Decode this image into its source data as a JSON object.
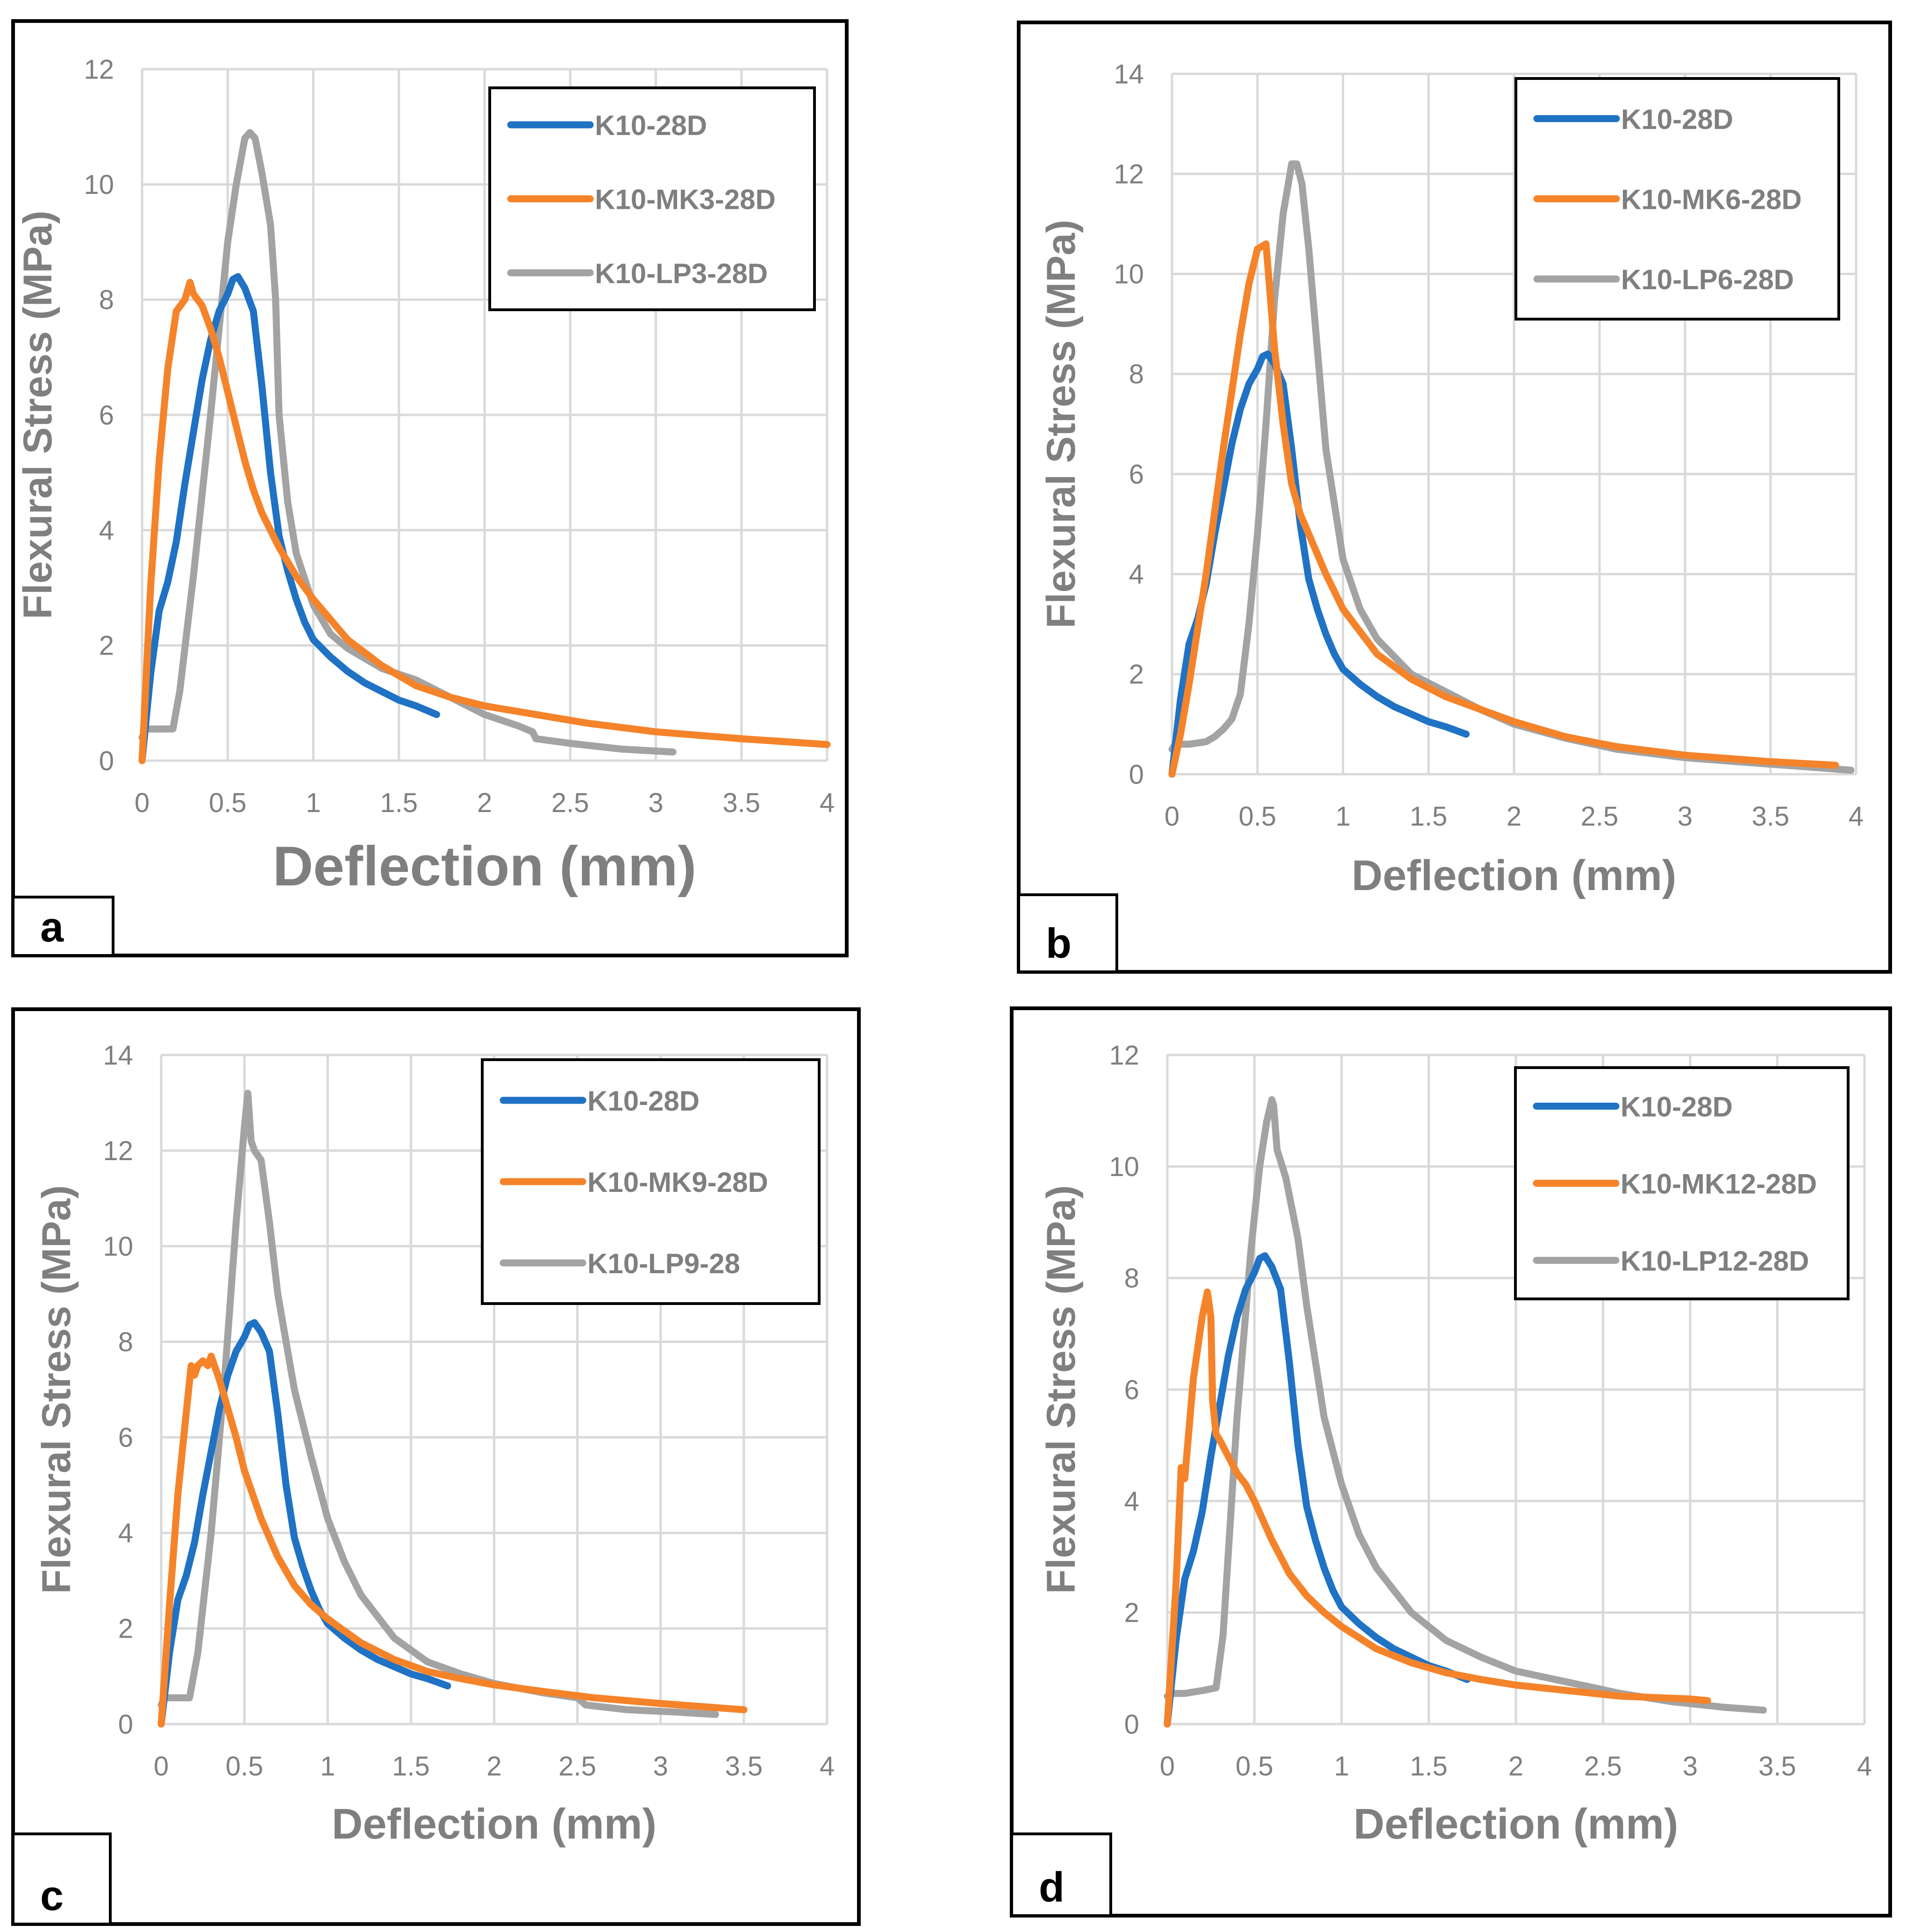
{
  "colors": {
    "blue": "#1f72c4",
    "orange": "#f5832a",
    "gray": "#a3a3a3",
    "grid": "#d9d9d9",
    "axis_text": "#7f7f7f",
    "frame": "#000000"
  },
  "chart_data": [
    {
      "panel": "a",
      "type": "line",
      "title": "",
      "xlabel": "Deflection (mm)",
      "ylabel": "Flexural Stress (MPa)",
      "xlim": [
        0,
        4
      ],
      "ylim": [
        0,
        12
      ],
      "xticks": [
        0,
        0.5,
        1,
        1.5,
        2,
        2.5,
        3,
        3.5,
        4
      ],
      "yticks": [
        0,
        2,
        4,
        6,
        8,
        10,
        12
      ],
      "xtick_labels": [
        "0",
        "0.5",
        "1",
        "1.5",
        "2",
        "2.5",
        "3",
        "3.5",
        "4"
      ],
      "ytick_labels": [
        "0",
        "2",
        "4",
        "6",
        "8",
        "10",
        "12"
      ],
      "grid": true,
      "legend": "top-right",
      "series": [
        {
          "name": "K10-28D",
          "color": "blue",
          "x": [
            0,
            0.05,
            0.1,
            0.15,
            0.2,
            0.25,
            0.3,
            0.35,
            0.4,
            0.45,
            0.5,
            0.53,
            0.56,
            0.6,
            0.65,
            0.7,
            0.75,
            0.8,
            0.85,
            0.9,
            0.95,
            1.0,
            1.1,
            1.2,
            1.3,
            1.4,
            1.5,
            1.6,
            1.72
          ],
          "y": [
            0,
            1.5,
            2.6,
            3.1,
            3.8,
            4.8,
            5.7,
            6.6,
            7.3,
            7.8,
            8.1,
            8.35,
            8.4,
            8.2,
            7.8,
            6.5,
            5.0,
            3.9,
            3.3,
            2.8,
            2.4,
            2.1,
            1.8,
            1.55,
            1.35,
            1.2,
            1.05,
            0.95,
            0.8
          ]
        },
        {
          "name": "K10-MK3-28D",
          "color": "orange",
          "x": [
            0,
            0.05,
            0.1,
            0.15,
            0.2,
            0.25,
            0.28,
            0.3,
            0.35,
            0.4,
            0.45,
            0.5,
            0.55,
            0.6,
            0.65,
            0.7,
            0.8,
            0.9,
            1.0,
            1.2,
            1.4,
            1.6,
            1.8,
            2.0,
            2.3,
            2.6,
            3.0,
            3.5,
            4.0
          ],
          "y": [
            0,
            3.0,
            5.2,
            6.8,
            7.8,
            8.0,
            8.3,
            8.1,
            7.9,
            7.5,
            7.0,
            6.4,
            5.8,
            5.2,
            4.7,
            4.3,
            3.7,
            3.2,
            2.8,
            2.1,
            1.65,
            1.3,
            1.1,
            0.95,
            0.8,
            0.65,
            0.5,
            0.38,
            0.28
          ]
        },
        {
          "name": "K10-LP3-28D",
          "color": "gray",
          "x": [
            0,
            0.02,
            0.1,
            0.18,
            0.22,
            0.3,
            0.4,
            0.5,
            0.55,
            0.6,
            0.63,
            0.66,
            0.7,
            0.75,
            0.78,
            0.8,
            0.85,
            0.9,
            1.0,
            1.1,
            1.2,
            1.4,
            1.6,
            1.8,
            2.0,
            2.2,
            2.28,
            2.3,
            2.5,
            2.8,
            3.1
          ],
          "y": [
            0.4,
            0.55,
            0.55,
            0.55,
            1.2,
            3.2,
            6.0,
            9.0,
            10.0,
            10.8,
            10.9,
            10.8,
            10.2,
            9.3,
            8.0,
            6.0,
            4.5,
            3.6,
            2.7,
            2.2,
            1.95,
            1.6,
            1.4,
            1.1,
            0.8,
            0.6,
            0.5,
            0.38,
            0.3,
            0.2,
            0.15
          ]
        }
      ]
    },
    {
      "panel": "b",
      "type": "line",
      "title": "",
      "xlabel": "Deflection (mm)",
      "ylabel": "Flexural Stress (MPa)",
      "xlim": [
        0,
        4
      ],
      "ylim": [
        0,
        14
      ],
      "xticks": [
        0,
        0.5,
        1,
        1.5,
        2,
        2.5,
        3,
        3.5,
        4
      ],
      "yticks": [
        0,
        2,
        4,
        6,
        8,
        10,
        12,
        14
      ],
      "xtick_labels": [
        "0",
        "0.5",
        "1",
        "1.5",
        "2",
        "2.5",
        "3",
        "3.5",
        "4"
      ],
      "ytick_labels": [
        "0",
        "2",
        "4",
        "6",
        "8",
        "10",
        "12",
        "14"
      ],
      "grid": true,
      "legend": "top-right",
      "series": [
        {
          "name": "K10-28D",
          "color": "blue",
          "x": [
            0,
            0.05,
            0.1,
            0.15,
            0.2,
            0.25,
            0.3,
            0.35,
            0.4,
            0.45,
            0.5,
            0.53,
            0.56,
            0.6,
            0.65,
            0.7,
            0.75,
            0.8,
            0.85,
            0.9,
            0.95,
            1.0,
            1.1,
            1.2,
            1.3,
            1.4,
            1.5,
            1.6,
            1.72
          ],
          "y": [
            0,
            1.5,
            2.6,
            3.1,
            3.8,
            4.8,
            5.7,
            6.6,
            7.3,
            7.8,
            8.1,
            8.35,
            8.4,
            8.2,
            7.8,
            6.5,
            5.0,
            3.9,
            3.3,
            2.8,
            2.4,
            2.1,
            1.8,
            1.55,
            1.35,
            1.2,
            1.05,
            0.95,
            0.8
          ]
        },
        {
          "name": "K10-MK6-28D",
          "color": "orange",
          "x": [
            0,
            0.05,
            0.1,
            0.2,
            0.3,
            0.4,
            0.45,
            0.5,
            0.55,
            0.6,
            0.65,
            0.7,
            0.75,
            0.8,
            0.9,
            1.0,
            1.2,
            1.4,
            1.6,
            1.8,
            2.0,
            2.3,
            2.6,
            3.0,
            3.5,
            3.88
          ],
          "y": [
            0,
            0.8,
            1.8,
            4.0,
            6.5,
            8.8,
            9.8,
            10.5,
            10.6,
            8.5,
            7.0,
            5.8,
            5.2,
            4.8,
            4.0,
            3.3,
            2.4,
            1.9,
            1.55,
            1.3,
            1.05,
            0.75,
            0.55,
            0.38,
            0.25,
            0.18
          ]
        },
        {
          "name": "K10-LP6-28D",
          "color": "gray",
          "x": [
            0,
            0.02,
            0.1,
            0.2,
            0.25,
            0.3,
            0.35,
            0.4,
            0.45,
            0.5,
            0.55,
            0.6,
            0.65,
            0.7,
            0.73,
            0.76,
            0.8,
            0.85,
            0.9,
            1.0,
            1.1,
            1.2,
            1.4,
            1.6,
            1.8,
            2.0,
            2.3,
            2.6,
            3.0,
            3.5,
            3.97
          ],
          "y": [
            0.5,
            0.6,
            0.6,
            0.65,
            0.75,
            0.9,
            1.1,
            1.6,
            3.0,
            4.8,
            7.0,
            9.5,
            11.2,
            12.2,
            12.2,
            11.8,
            10.5,
            8.5,
            6.5,
            4.3,
            3.3,
            2.7,
            2.0,
            1.65,
            1.3,
            1.0,
            0.72,
            0.5,
            0.33,
            0.2,
            0.08
          ]
        }
      ]
    },
    {
      "panel": "c",
      "type": "line",
      "title": "",
      "xlabel": "Deflection (mm)",
      "ylabel": "Flexural Stress (MPa)",
      "xlim": [
        0,
        4
      ],
      "ylim": [
        0,
        14
      ],
      "xticks": [
        0,
        0.5,
        1,
        1.5,
        2,
        2.5,
        3,
        3.5,
        4
      ],
      "yticks": [
        0,
        2,
        4,
        6,
        8,
        10,
        12,
        14
      ],
      "xtick_labels": [
        "0",
        "0.5",
        "1",
        "1.5",
        "2",
        "2.5",
        "3",
        "3.5",
        "4"
      ],
      "ytick_labels": [
        "0",
        "2",
        "4",
        "6",
        "8",
        "10",
        "12",
        "14"
      ],
      "grid": true,
      "legend": "top-right",
      "series": [
        {
          "name": "K10-28D",
          "color": "blue",
          "x": [
            0,
            0.05,
            0.1,
            0.15,
            0.2,
            0.25,
            0.3,
            0.35,
            0.4,
            0.45,
            0.5,
            0.53,
            0.56,
            0.6,
            0.65,
            0.7,
            0.75,
            0.8,
            0.85,
            0.9,
            0.95,
            1.0,
            1.1,
            1.2,
            1.3,
            1.4,
            1.5,
            1.6,
            1.72
          ],
          "y": [
            0,
            1.5,
            2.6,
            3.1,
            3.8,
            4.8,
            5.7,
            6.6,
            7.3,
            7.8,
            8.1,
            8.35,
            8.4,
            8.2,
            7.8,
            6.5,
            5.0,
            3.9,
            3.3,
            2.8,
            2.4,
            2.1,
            1.8,
            1.55,
            1.35,
            1.2,
            1.05,
            0.95,
            0.8
          ]
        },
        {
          "name": "K10-MK9-28D",
          "color": "orange",
          "x": [
            0,
            0.05,
            0.1,
            0.15,
            0.18,
            0.2,
            0.22,
            0.25,
            0.28,
            0.3,
            0.35,
            0.4,
            0.45,
            0.5,
            0.55,
            0.6,
            0.7,
            0.8,
            0.9,
            1.0,
            1.2,
            1.4,
            1.6,
            1.8,
            2.0,
            2.3,
            2.6,
            3.0,
            3.5
          ],
          "y": [
            0,
            2.5,
            4.8,
            6.5,
            7.5,
            7.3,
            7.5,
            7.6,
            7.5,
            7.7,
            7.2,
            6.6,
            6.0,
            5.3,
            4.8,
            4.3,
            3.5,
            2.9,
            2.5,
            2.2,
            1.7,
            1.35,
            1.1,
            0.95,
            0.82,
            0.68,
            0.55,
            0.43,
            0.3
          ]
        },
        {
          "name": "K10-LP9-28",
          "color": "gray",
          "x": [
            0,
            0.02,
            0.1,
            0.17,
            0.22,
            0.3,
            0.38,
            0.45,
            0.5,
            0.52,
            0.54,
            0.56,
            0.6,
            0.65,
            0.7,
            0.8,
            0.9,
            1.0,
            1.1,
            1.2,
            1.4,
            1.6,
            1.8,
            2.0,
            2.3,
            2.5,
            2.55,
            2.8,
            3.1,
            3.33
          ],
          "y": [
            0.4,
            0.55,
            0.55,
            0.55,
            1.5,
            4.0,
            7.2,
            10.5,
            12.5,
            13.2,
            12.2,
            12.0,
            11.8,
            10.5,
            9.0,
            7.0,
            5.6,
            4.3,
            3.4,
            2.7,
            1.8,
            1.3,
            1.05,
            0.85,
            0.65,
            0.55,
            0.4,
            0.3,
            0.25,
            0.2
          ]
        }
      ]
    },
    {
      "panel": "d",
      "type": "line",
      "title": "",
      "xlabel": "Deflection (mm)",
      "ylabel": "Flexural Stress (MPa)",
      "xlim": [
        0,
        4
      ],
      "ylim": [
        0,
        12
      ],
      "xticks": [
        0,
        0.5,
        1,
        1.5,
        2,
        2.5,
        3,
        3.5,
        4
      ],
      "yticks": [
        0,
        2,
        4,
        6,
        8,
        10,
        12
      ],
      "xtick_labels": [
        "0",
        "0.5",
        "1",
        "1.5",
        "2",
        "2.5",
        "3",
        "3.5",
        "4"
      ],
      "ytick_labels": [
        "0",
        "2",
        "4",
        "6",
        "8",
        "10",
        "12"
      ],
      "grid": true,
      "legend": "top-right",
      "series": [
        {
          "name": "K10-28D",
          "color": "blue",
          "x": [
            0,
            0.05,
            0.1,
            0.15,
            0.2,
            0.25,
            0.3,
            0.35,
            0.4,
            0.45,
            0.5,
            0.53,
            0.56,
            0.6,
            0.65,
            0.7,
            0.75,
            0.8,
            0.85,
            0.9,
            0.95,
            1.0,
            1.1,
            1.2,
            1.3,
            1.4,
            1.5,
            1.6,
            1.72
          ],
          "y": [
            0,
            1.5,
            2.6,
            3.1,
            3.8,
            4.8,
            5.7,
            6.6,
            7.3,
            7.8,
            8.1,
            8.35,
            8.4,
            8.2,
            7.8,
            6.5,
            5.0,
            3.9,
            3.3,
            2.8,
            2.4,
            2.1,
            1.8,
            1.55,
            1.35,
            1.2,
            1.05,
            0.95,
            0.8
          ]
        },
        {
          "name": "K10-MK12-28D",
          "color": "orange",
          "x": [
            0,
            0.05,
            0.08,
            0.1,
            0.15,
            0.2,
            0.23,
            0.25,
            0.26,
            0.28,
            0.3,
            0.35,
            0.4,
            0.45,
            0.5,
            0.6,
            0.7,
            0.8,
            0.9,
            1.0,
            1.2,
            1.4,
            1.6,
            1.8,
            2.0,
            2.3,
            2.6,
            3.0,
            3.1
          ],
          "y": [
            0,
            2.5,
            4.6,
            4.4,
            6.2,
            7.3,
            7.75,
            7.3,
            5.8,
            5.2,
            5.1,
            4.8,
            4.5,
            4.3,
            4.0,
            3.3,
            2.7,
            2.3,
            2.0,
            1.75,
            1.35,
            1.1,
            0.92,
            0.8,
            0.7,
            0.6,
            0.5,
            0.45,
            0.42
          ]
        },
        {
          "name": "K10-LP12-28D",
          "color": "gray",
          "x": [
            0,
            0.02,
            0.1,
            0.2,
            0.28,
            0.32,
            0.4,
            0.48,
            0.53,
            0.57,
            0.6,
            0.61,
            0.63,
            0.68,
            0.75,
            0.8,
            0.9,
            1.0,
            1.1,
            1.2,
            1.4,
            1.6,
            1.8,
            2.0,
            2.3,
            2.6,
            2.9,
            3.2,
            3.42
          ],
          "y": [
            0.5,
            0.55,
            0.55,
            0.6,
            0.65,
            1.6,
            5.5,
            8.5,
            10.0,
            10.8,
            11.2,
            11.1,
            10.3,
            9.8,
            8.7,
            7.5,
            5.5,
            4.3,
            3.4,
            2.8,
            2.0,
            1.5,
            1.2,
            0.95,
            0.75,
            0.55,
            0.4,
            0.3,
            0.25
          ]
        }
      ]
    }
  ]
}
